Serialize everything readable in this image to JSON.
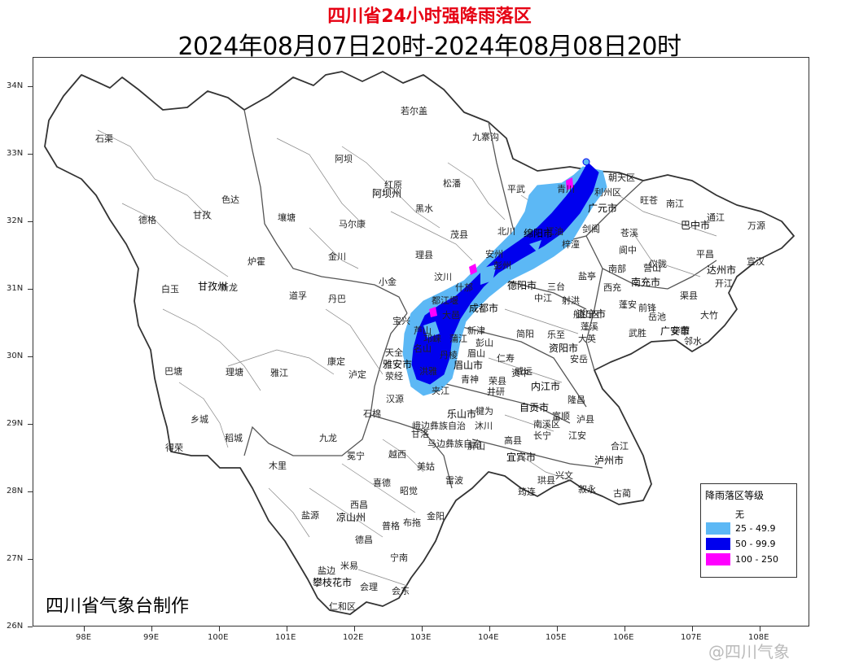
{
  "title": "四川省24小时强降雨落区",
  "subtitle": "2024年08月07日20时-2024年08月08日20时",
  "credit": "四川省气象台制作",
  "watermark": "@四川气象",
  "axes": {
    "lat_labels": [
      "34N",
      "33N",
      "32N",
      "31N",
      "30N",
      "29N",
      "28N",
      "27N",
      "26N"
    ],
    "lon_labels": [
      "98E",
      "99E",
      "100E",
      "101E",
      "102E",
      "103E",
      "104E",
      "105E",
      "106E",
      "107E",
      "108E"
    ]
  },
  "legend": {
    "title": "降雨落区等级",
    "items": [
      {
        "label": "无",
        "color": "#ffffff"
      },
      {
        "label": "25 - 49.9",
        "color": "#5cb8f5"
      },
      {
        "label": "50 - 99.9",
        "color": "#0000ee"
      },
      {
        "label": "100 - 250",
        "color": "#ff00ff"
      }
    ]
  },
  "places": [
    {
      "name": "石渠",
      "kind": "county"
    },
    {
      "name": "德格",
      "kind": "county"
    },
    {
      "name": "甘孜",
      "kind": "county"
    },
    {
      "name": "色达",
      "kind": "county"
    },
    {
      "name": "白玉",
      "kind": "county"
    },
    {
      "name": "甘孜州",
      "kind": "prefecture"
    },
    {
      "name": "新龙",
      "kind": "county"
    },
    {
      "name": "炉霍",
      "kind": "county"
    },
    {
      "name": "壤塘",
      "kind": "county"
    },
    {
      "name": "阿坝",
      "kind": "county"
    },
    {
      "name": "红原",
      "kind": "county"
    },
    {
      "name": "阿坝州",
      "kind": "prefecture"
    },
    {
      "name": "若尔盖",
      "kind": "county"
    },
    {
      "name": "九寨沟",
      "kind": "county"
    },
    {
      "name": "松潘",
      "kind": "county"
    },
    {
      "name": "黑水",
      "kind": "county"
    },
    {
      "name": "马尔康",
      "kind": "county"
    },
    {
      "name": "金川",
      "kind": "county"
    },
    {
      "name": "道孚",
      "kind": "county"
    },
    {
      "name": "丹巴",
      "kind": "county"
    },
    {
      "name": "小金",
      "kind": "county"
    },
    {
      "name": "理县",
      "kind": "county"
    },
    {
      "name": "茂县",
      "kind": "county"
    },
    {
      "name": "汶川",
      "kind": "county"
    },
    {
      "name": "平武",
      "kind": "county"
    },
    {
      "name": "青川",
      "kind": "county"
    },
    {
      "name": "北川",
      "kind": "county"
    },
    {
      "name": "绵阳市",
      "kind": "city"
    },
    {
      "name": "江油",
      "kind": "county"
    },
    {
      "name": "剑阁",
      "kind": "county"
    },
    {
      "name": "利州区",
      "kind": "county"
    },
    {
      "name": "朝天区",
      "kind": "county"
    },
    {
      "name": "广元市",
      "kind": "city"
    },
    {
      "name": "旺苍",
      "kind": "county"
    },
    {
      "name": "南江",
      "kind": "county"
    },
    {
      "name": "巴中市",
      "kind": "city"
    },
    {
      "name": "通江",
      "kind": "county"
    },
    {
      "name": "万源",
      "kind": "county"
    },
    {
      "name": "宣汉",
      "kind": "county"
    },
    {
      "name": "达州市",
      "kind": "city"
    },
    {
      "name": "平昌",
      "kind": "county"
    },
    {
      "name": "大竹",
      "kind": "county"
    },
    {
      "name": "邻水",
      "kind": "county"
    },
    {
      "name": "渠县",
      "kind": "county"
    },
    {
      "name": "营山",
      "kind": "county"
    },
    {
      "name": "仪陇",
      "kind": "county"
    },
    {
      "name": "南部",
      "kind": "county"
    },
    {
      "name": "阆中",
      "kind": "county"
    },
    {
      "name": "苍溪",
      "kind": "county"
    },
    {
      "name": "南充市",
      "kind": "city"
    },
    {
      "name": "西充",
      "kind": "county"
    },
    {
      "name": "盐亭",
      "kind": "county"
    },
    {
      "name": "三台",
      "kind": "county"
    },
    {
      "name": "梓潼",
      "kind": "county"
    },
    {
      "name": "德阳市",
      "kind": "city"
    },
    {
      "name": "什邡",
      "kind": "county"
    },
    {
      "name": "成都市",
      "kind": "city"
    },
    {
      "name": "都江堰",
      "kind": "county"
    },
    {
      "name": "彭州",
      "kind": "county"
    },
    {
      "name": "中江",
      "kind": "county"
    },
    {
      "name": "射洪",
      "kind": "county"
    },
    {
      "name": "遂宁市",
      "kind": "city"
    },
    {
      "name": "蓬溪",
      "kind": "county"
    },
    {
      "name": "广安市",
      "kind": "city"
    },
    {
      "name": "岳池",
      "kind": "county"
    },
    {
      "name": "武胜",
      "kind": "county"
    },
    {
      "name": "安岳",
      "kind": "county"
    },
    {
      "name": "资阳市",
      "kind": "city"
    },
    {
      "name": "简阳",
      "kind": "county"
    },
    {
      "name": "乐至",
      "kind": "county"
    },
    {
      "name": "内江市",
      "kind": "city"
    },
    {
      "name": "资中",
      "kind": "county"
    },
    {
      "name": "自贡市",
      "kind": "city"
    },
    {
      "name": "宜宾市",
      "kind": "city"
    },
    {
      "name": "泸州市",
      "kind": "city"
    },
    {
      "name": "叙永",
      "kind": "county"
    },
    {
      "name": "古蔺",
      "kind": "county"
    },
    {
      "name": "合江",
      "kind": "county"
    },
    {
      "name": "筠连",
      "kind": "county"
    },
    {
      "name": "珙县",
      "kind": "county"
    },
    {
      "name": "兴文",
      "kind": "county"
    },
    {
      "name": "乐山市",
      "kind": "city"
    },
    {
      "name": "眉山市",
      "kind": "city"
    },
    {
      "name": "仁寿",
      "kind": "county"
    },
    {
      "name": "雅安市",
      "kind": "city"
    },
    {
      "name": "芦山",
      "kind": "county"
    },
    {
      "name": "宝兴",
      "kind": "county"
    },
    {
      "name": "天全",
      "kind": "county"
    },
    {
      "name": "荥经",
      "kind": "county"
    },
    {
      "name": "汉源",
      "kind": "county"
    },
    {
      "name": "石棉",
      "kind": "county"
    },
    {
      "name": "泸定",
      "kind": "county"
    },
    {
      "name": "康定",
      "kind": "county"
    },
    {
      "name": "雅江",
      "kind": "county"
    },
    {
      "name": "理塘",
      "kind": "county"
    },
    {
      "name": "巴塘",
      "kind": "county"
    },
    {
      "name": "乡城",
      "kind": "county"
    },
    {
      "name": "稻城",
      "kind": "county"
    },
    {
      "name": "得荣",
      "kind": "county"
    },
    {
      "name": "九龙",
      "kind": "county"
    },
    {
      "name": "木里",
      "kind": "county"
    },
    {
      "name": "冕宁",
      "kind": "county"
    },
    {
      "name": "越西",
      "kind": "county"
    },
    {
      "name": "甘洛",
      "kind": "county"
    },
    {
      "name": "美姑",
      "kind": "county"
    },
    {
      "name": "喜德",
      "kind": "county"
    },
    {
      "name": "昭觉",
      "kind": "county"
    },
    {
      "name": "雷波",
      "kind": "county"
    },
    {
      "name": "西昌",
      "kind": "county"
    },
    {
      "name": "凉山州",
      "kind": "prefecture"
    },
    {
      "name": "盐源",
      "kind": "county"
    },
    {
      "name": "普格",
      "kind": "county"
    },
    {
      "name": "布拖",
      "kind": "county"
    },
    {
      "name": "金阳",
      "kind": "county"
    },
    {
      "name": "德昌",
      "kind": "county"
    },
    {
      "name": "宁南",
      "kind": "county"
    },
    {
      "name": "会东",
      "kind": "county"
    },
    {
      "name": "米易",
      "kind": "county"
    },
    {
      "name": "会理",
      "kind": "county"
    },
    {
      "name": "盐边",
      "kind": "county"
    },
    {
      "name": "攀枝花市",
      "kind": "city"
    },
    {
      "name": "仁和区",
      "kind": "county"
    },
    {
      "name": "马边彝族自治",
      "kind": "county"
    },
    {
      "name": "峨边彝族自治",
      "kind": "county"
    },
    {
      "name": "沐川",
      "kind": "county"
    },
    {
      "name": "犍为",
      "kind": "county"
    },
    {
      "name": "井研",
      "kind": "county"
    },
    {
      "name": "屏山",
      "kind": "county"
    },
    {
      "name": "高县",
      "kind": "county"
    },
    {
      "name": "江安",
      "kind": "county"
    },
    {
      "name": "长宁",
      "kind": "county"
    },
    {
      "name": "南溪区",
      "kind": "county"
    },
    {
      "name": "富顺",
      "kind": "county"
    },
    {
      "name": "隆昌",
      "kind": "county"
    },
    {
      "name": "泸县",
      "kind": "county"
    },
    {
      "name": "荣县",
      "kind": "county"
    },
    {
      "name": "威远",
      "kind": "county"
    },
    {
      "name": "夹江",
      "kind": "county"
    },
    {
      "name": "洪雅",
      "kind": "county"
    },
    {
      "name": "丹棱",
      "kind": "county"
    },
    {
      "name": "名山",
      "kind": "county"
    },
    {
      "name": "蒲江",
      "kind": "county"
    },
    {
      "name": "邛崃",
      "kind": "county"
    },
    {
      "name": "大邑",
      "kind": "county"
    },
    {
      "name": "新津",
      "kind": "county"
    },
    {
      "name": "眉山",
      "kind": "county"
    },
    {
      "name": "青神",
      "kind": "county"
    },
    {
      "name": "彭山",
      "kind": "county"
    },
    {
      "name": "开江",
      "kind": "county"
    },
    {
      "name": "蓬安",
      "kind": "county"
    },
    {
      "name": "大英",
      "kind": "county"
    },
    {
      "name": "船山区",
      "kind": "county"
    },
    {
      "name": "华蓥",
      "kind": "county"
    },
    {
      "name": "前锋",
      "kind": "county"
    },
    {
      "name": "安州",
      "kind": "county"
    }
  ]
}
